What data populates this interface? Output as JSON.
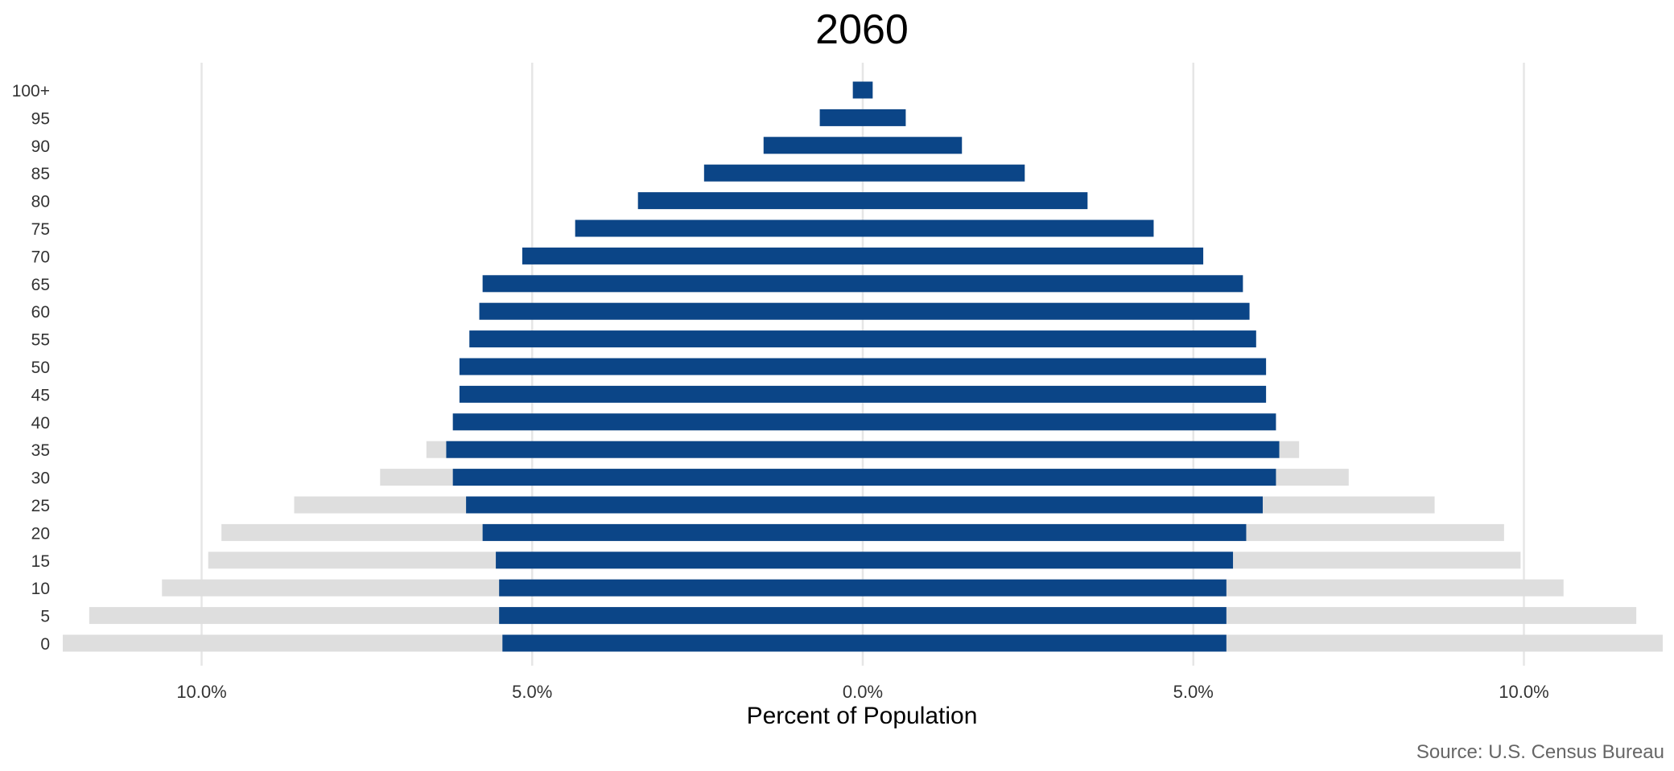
{
  "chart_data": {
    "type": "bar",
    "orientation": "horizontal",
    "layout": "population-pyramid",
    "title": "2060",
    "xlabel": "Percent of Population",
    "source": "Source: U.S. Census Bureau",
    "xlim": [
      -12.1,
      12.1
    ],
    "x_ticks": [
      -10,
      -5,
      0,
      5,
      10
    ],
    "x_tick_labels": [
      "10.0%",
      "5.0%",
      "0.0%",
      "5.0%",
      "10.0%"
    ],
    "grid": "vertical",
    "colors": {
      "current": "#0b4587",
      "reference": "#dedede",
      "grid": "#e6e6e6"
    },
    "categories": [
      "0",
      "5",
      "10",
      "15",
      "20",
      "25",
      "30",
      "35",
      "40",
      "45",
      "50",
      "55",
      "60",
      "65",
      "70",
      "75",
      "80",
      "85",
      "90",
      "95",
      "100+"
    ],
    "series": [
      {
        "role": "reference-left",
        "values": [
          -12.1,
          -11.7,
          -10.6,
          -9.9,
          -9.7,
          -8.6,
          -7.3,
          -6.6,
          -6.2,
          -6.0,
          -6.0,
          -5.9,
          -5.8,
          -5.7,
          -5.1,
          -4.3,
          -3.4,
          -2.4,
          -1.5,
          -0.65,
          -0.15
        ]
      },
      {
        "role": "reference-right",
        "values": [
          12.1,
          11.7,
          10.6,
          9.95,
          9.7,
          8.65,
          7.35,
          6.6,
          6.25,
          6.1,
          6.1,
          5.95,
          5.8,
          5.75,
          5.15,
          4.4,
          3.4,
          2.45,
          1.5,
          0.65,
          0.15
        ]
      },
      {
        "role": "current-left",
        "values": [
          -5.45,
          -5.5,
          -5.5,
          -5.55,
          -5.75,
          -6.0,
          -6.2,
          -6.3,
          -6.2,
          -6.1,
          -6.1,
          -5.95,
          -5.8,
          -5.75,
          -5.15,
          -4.35,
          -3.4,
          -2.4,
          -1.5,
          -0.65,
          -0.15
        ]
      },
      {
        "role": "current-right",
        "values": [
          5.5,
          5.5,
          5.5,
          5.6,
          5.8,
          6.05,
          6.25,
          6.3,
          6.25,
          6.1,
          6.1,
          5.95,
          5.85,
          5.75,
          5.15,
          4.4,
          3.4,
          2.45,
          1.5,
          0.65,
          0.15
        ]
      }
    ]
  }
}
